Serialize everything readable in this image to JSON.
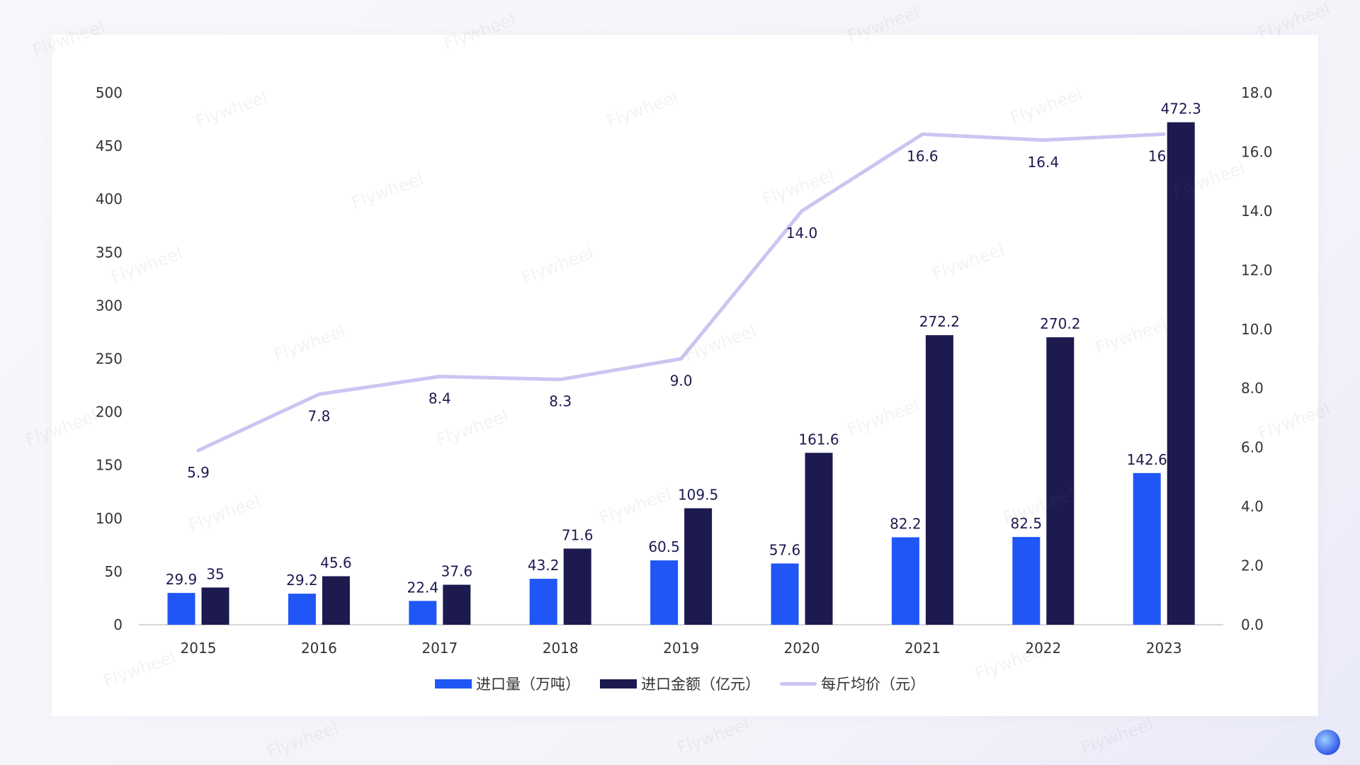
{
  "chart_data": {
    "type": "bar+line",
    "categories": [
      "2015",
      "2016",
      "2017",
      "2018",
      "2019",
      "2020",
      "2021",
      "2022",
      "2023"
    ],
    "series": [
      {
        "name": "进口量（万吨）",
        "type": "bar",
        "axis": "left",
        "color": "#1f56f5",
        "values": [
          29.9,
          29.2,
          22.4,
          43.2,
          60.5,
          57.6,
          82.2,
          82.5,
          142.6
        ],
        "labels": [
          "29.9",
          "29.2",
          "22.4",
          "43.2",
          "60.5",
          "57.6",
          "82.2",
          "82.5",
          "142.6"
        ]
      },
      {
        "name": "进口金额（亿元）",
        "type": "bar",
        "axis": "left",
        "color": "#1c1a4f",
        "values": [
          35,
          45.6,
          37.6,
          71.6,
          109.5,
          161.6,
          272.2,
          270.2,
          472.3
        ],
        "labels": [
          "35",
          "45.6",
          "37.6",
          "71.6",
          "109.5",
          "161.6",
          "272.2",
          "270.2",
          "472.3"
        ]
      },
      {
        "name": "每斤均价（元）",
        "type": "line",
        "axis": "right",
        "color": "#c9c6f2",
        "values": [
          5.9,
          7.8,
          8.4,
          8.3,
          9.0,
          14.0,
          16.6,
          16.4,
          16.6
        ],
        "labels": [
          "5.9",
          "7.8",
          "8.4",
          "8.3",
          "9.0",
          "14.0",
          "16.6",
          "16.4",
          "16.6"
        ]
      }
    ],
    "y_left": {
      "ylim": [
        0,
        500
      ],
      "ticks": [
        "0",
        "50",
        "100",
        "150",
        "200",
        "250",
        "300",
        "350",
        "400",
        "450",
        "500"
      ]
    },
    "y_right": {
      "ylim": [
        0,
        18
      ],
      "ticks": [
        "0.0",
        "2.0",
        "4.0",
        "6.0",
        "8.0",
        "10.0",
        "12.0",
        "14.0",
        "16.0",
        "18.0"
      ]
    },
    "legend_position": "bottom",
    "grid": false
  },
  "legend": [
    "进口量（万吨）",
    "进口金额（亿元）",
    "每斤均价（元）"
  ],
  "watermark": "Flywheel"
}
